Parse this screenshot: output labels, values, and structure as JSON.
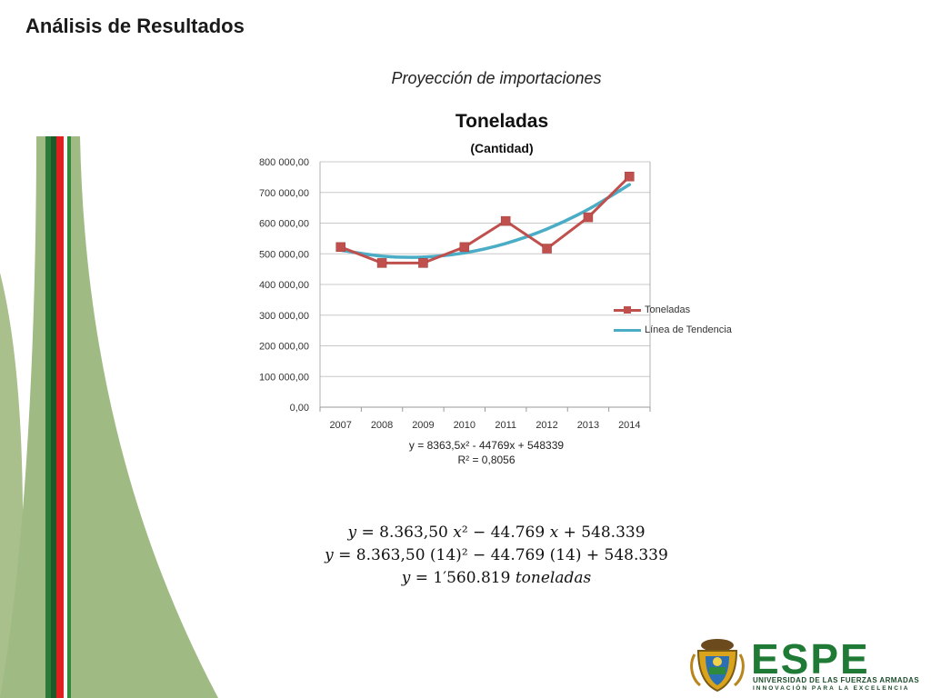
{
  "slide": {
    "title": "Análisis de Resultados",
    "subtitle": "Proyección  de importaciones"
  },
  "chart_data": {
    "type": "line",
    "title": "Toneladas",
    "subtitle": "(Cantidad)",
    "categories": [
      "2007",
      "2008",
      "2009",
      "2010",
      "2011",
      "2012",
      "2013",
      "2014"
    ],
    "series": [
      {
        "name": "Toneladas",
        "color": "#c0504d",
        "marker": "square",
        "values": [
          522000,
          470000,
          470000,
          522000,
          607000,
          517000,
          619000,
          752000
        ]
      },
      {
        "name": "Línea de Tendencia",
        "color": "#4bacc6",
        "marker": "none",
        "trend": "polynomial-2",
        "values": [
          511934,
          492255,
          489303,
          503078,
          533580,
          580809,
          644765,
          725448
        ]
      }
    ],
    "y_ticks": [
      "0,00",
      "100 000,00",
      "200 000,00",
      "300 000,00",
      "400 000,00",
      "500 000,00",
      "600 000,00",
      "700 000,00",
      "800 000,00"
    ],
    "ylim": [
      0,
      800000
    ],
    "grid": true,
    "legend_position": "right",
    "equation": "y = 8363,5x² - 44769x + 548339",
    "r_squared": "R² = 0,8056"
  },
  "math": {
    "line1": "𝑦 =  8.363,50 𝑥² − 44.769 𝑥 +  548.339",
    "line2": "𝑦 = 8.363,50 (14)² − 44.769 (14) +  548.339",
    "line3": "𝑦 = 1′560.819 𝑡𝑜𝑛𝑒𝑙𝑎𝑑𝑎𝑠"
  },
  "logo": {
    "word": "ESPE",
    "university": "UNIVERSIDAD DE LAS FUERZAS ARMADAS",
    "motto": "INNOVACIÓN PARA LA EXCELENCIA"
  }
}
